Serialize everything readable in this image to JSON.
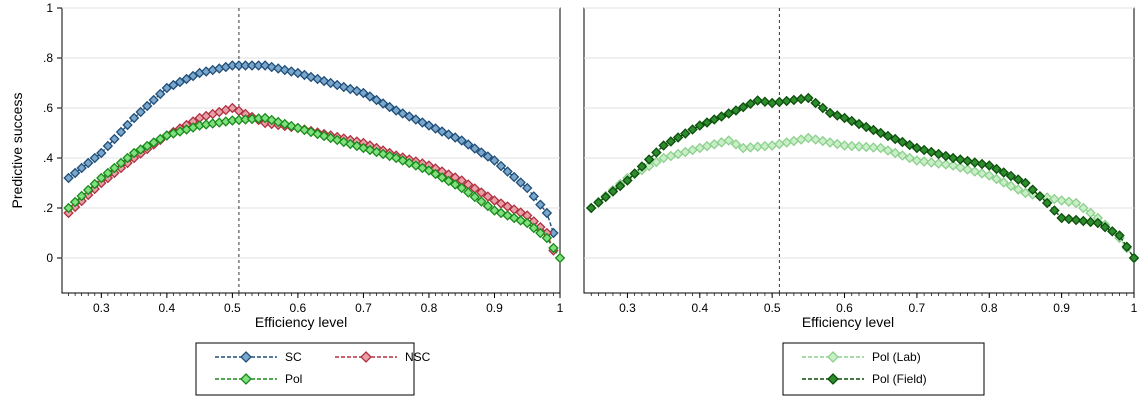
{
  "chart_data": [
    {
      "type": "line",
      "xlabel": "Efficiency level",
      "ylabel": "Predictive success",
      "xlim": [
        0.24,
        1.0
      ],
      "ylim": [
        -0.14,
        1.0
      ],
      "x_ticks": [
        {
          "value": 0.3,
          "label": "0.3"
        },
        {
          "value": 0.4,
          "label": "0.4"
        },
        {
          "value": 0.5,
          "label": "0.5"
        },
        {
          "value": 0.6,
          "label": "0.6"
        },
        {
          "value": 0.7,
          "label": "0.7"
        },
        {
          "value": 0.8,
          "label": "0.8"
        },
        {
          "value": 0.9,
          "label": "0.9"
        },
        {
          "value": 1.0,
          "label": "1"
        }
      ],
      "y_ticks": [
        {
          "value": 0,
          "label": "0"
        },
        {
          "value": 0.2,
          "label": ".2"
        },
        {
          "value": 0.4,
          "label": ".4"
        },
        {
          "value": 0.6,
          "label": ".6"
        },
        {
          "value": 0.8,
          "label": ".8"
        },
        {
          "value": 1.0,
          "label": "1"
        }
      ],
      "grid": true,
      "reference_line_x": 0.51,
      "legend_position": "bottom-center",
      "series": [
        {
          "name": "SC",
          "line_color": "#1f4e79",
          "marker_fill": "#7ba7cc",
          "points": [
            [
              0.25,
              0.32
            ],
            [
              0.3,
              0.42
            ],
            [
              0.35,
              0.56
            ],
            [
              0.4,
              0.68
            ],
            [
              0.45,
              0.74
            ],
            [
              0.5,
              0.77
            ],
            [
              0.55,
              0.77
            ],
            [
              0.6,
              0.74
            ],
            [
              0.65,
              0.7
            ],
            [
              0.7,
              0.66
            ],
            [
              0.75,
              0.59
            ],
            [
              0.8,
              0.53
            ],
            [
              0.85,
              0.47
            ],
            [
              0.9,
              0.39
            ],
            [
              0.95,
              0.28
            ],
            [
              0.98,
              0.18
            ],
            [
              0.99,
              0.1
            ]
          ]
        },
        {
          "name": "NSC",
          "line_color": "#b03040",
          "marker_fill": "#e8a0a8",
          "points": [
            [
              0.25,
              0.18
            ],
            [
              0.3,
              0.3
            ],
            [
              0.35,
              0.4
            ],
            [
              0.4,
              0.49
            ],
            [
              0.45,
              0.56
            ],
            [
              0.5,
              0.6
            ],
            [
              0.55,
              0.54
            ],
            [
              0.6,
              0.52
            ],
            [
              0.65,
              0.49
            ],
            [
              0.7,
              0.46
            ],
            [
              0.75,
              0.41
            ],
            [
              0.8,
              0.37
            ],
            [
              0.85,
              0.31
            ],
            [
              0.9,
              0.23
            ],
            [
              0.95,
              0.17
            ],
            [
              0.98,
              0.1
            ],
            [
              0.99,
              0.03
            ]
          ]
        },
        {
          "name": "Pol",
          "line_color": "#1a8a1a",
          "marker_fill": "#7ee07e",
          "points": [
            [
              0.25,
              0.2
            ],
            [
              0.3,
              0.32
            ],
            [
              0.35,
              0.42
            ],
            [
              0.4,
              0.49
            ],
            [
              0.45,
              0.53
            ],
            [
              0.5,
              0.55
            ],
            [
              0.55,
              0.56
            ],
            [
              0.6,
              0.52
            ],
            [
              0.65,
              0.48
            ],
            [
              0.7,
              0.44
            ],
            [
              0.75,
              0.4
            ],
            [
              0.8,
              0.35
            ],
            [
              0.85,
              0.28
            ],
            [
              0.9,
              0.19
            ],
            [
              0.95,
              0.14
            ],
            [
              0.98,
              0.08
            ],
            [
              1.0,
              0.0
            ]
          ]
        }
      ]
    },
    {
      "type": "line",
      "xlabel": "Efficiency level",
      "ylabel": "",
      "xlim": [
        0.24,
        1.0
      ],
      "ylim": [
        -0.14,
        1.0
      ],
      "x_ticks": [
        {
          "value": 0.3,
          "label": "0.3"
        },
        {
          "value": 0.4,
          "label": "0.4"
        },
        {
          "value": 0.5,
          "label": "0.5"
        },
        {
          "value": 0.6,
          "label": "0.6"
        },
        {
          "value": 0.7,
          "label": "0.7"
        },
        {
          "value": 0.8,
          "label": "0.8"
        },
        {
          "value": 0.9,
          "label": "0.9"
        },
        {
          "value": 1.0,
          "label": "1"
        }
      ],
      "y_ticks": [],
      "grid": true,
      "reference_line_x": 0.51,
      "legend_position": "bottom-right",
      "series": [
        {
          "name": "Pol (Lab)",
          "line_color": "#8cd08c",
          "marker_fill": "#c8efc8",
          "points": [
            [
              0.25,
              0.2
            ],
            [
              0.3,
              0.32
            ],
            [
              0.35,
              0.4
            ],
            [
              0.4,
              0.44
            ],
            [
              0.44,
              0.47
            ],
            [
              0.46,
              0.44
            ],
            [
              0.5,
              0.45
            ],
            [
              0.55,
              0.48
            ],
            [
              0.6,
              0.45
            ],
            [
              0.65,
              0.44
            ],
            [
              0.7,
              0.39
            ],
            [
              0.75,
              0.37
            ],
            [
              0.8,
              0.33
            ],
            [
              0.85,
              0.26
            ],
            [
              0.9,
              0.23
            ],
            [
              0.92,
              0.22
            ],
            [
              0.95,
              0.16
            ],
            [
              0.98,
              0.08
            ],
            [
              1.0,
              0.0
            ]
          ]
        },
        {
          "name": "Pol (Field)",
          "line_color": "#0a4f0a",
          "marker_fill": "#2e8b2e",
          "points": [
            [
              0.25,
              0.2
            ],
            [
              0.3,
              0.31
            ],
            [
              0.35,
              0.45
            ],
            [
              0.4,
              0.53
            ],
            [
              0.45,
              0.59
            ],
            [
              0.48,
              0.63
            ],
            [
              0.5,
              0.62
            ],
            [
              0.55,
              0.64
            ],
            [
              0.58,
              0.58
            ],
            [
              0.6,
              0.56
            ],
            [
              0.65,
              0.5
            ],
            [
              0.7,
              0.44
            ],
            [
              0.75,
              0.4
            ],
            [
              0.8,
              0.37
            ],
            [
              0.85,
              0.3
            ],
            [
              0.88,
              0.22
            ],
            [
              0.9,
              0.16
            ],
            [
              0.95,
              0.14
            ],
            [
              0.98,
              0.09
            ],
            [
              1.0,
              0.0
            ]
          ]
        }
      ]
    }
  ]
}
